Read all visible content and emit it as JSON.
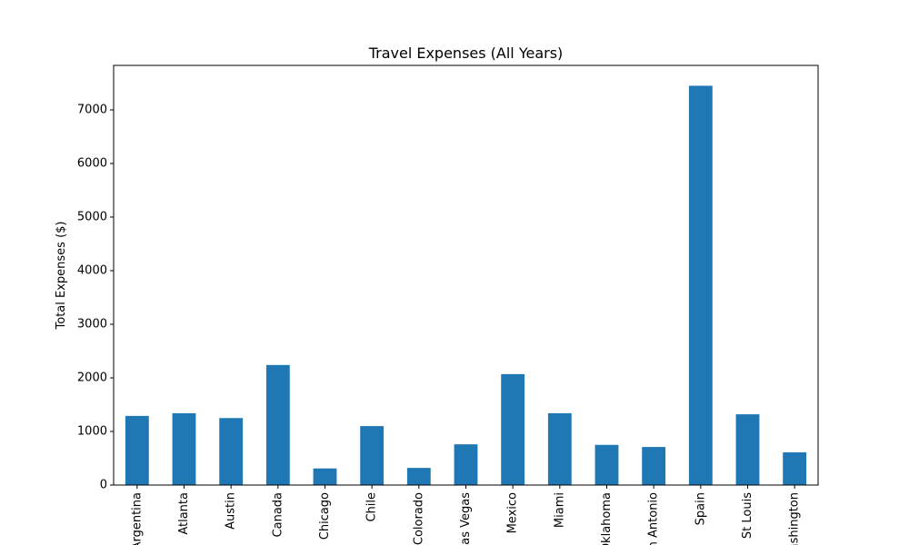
{
  "chart_data": {
    "type": "bar",
    "title": "Travel Expenses (All Years)",
    "xlabel": "",
    "ylabel": "Total Expenses ($)",
    "categories": [
      "Argentina",
      "Atlanta",
      "Austin",
      "Canada",
      "Chicago",
      "Chile",
      "Colorado",
      "Las Vegas",
      "Mexico",
      "Miami",
      "Oklahoma",
      "San Antonio",
      "Spain",
      "St Louis",
      "Washington"
    ],
    "values": [
      1290,
      1340,
      1250,
      2240,
      310,
      1100,
      320,
      760,
      2070,
      1340,
      750,
      710,
      7450,
      1320,
      610
    ],
    "ylim": [
      0,
      7830
    ],
    "yticks": [
      0,
      1000,
      2000,
      3000,
      4000,
      5000,
      6000,
      7000
    ],
    "bar_color": "#1f77b4",
    "grid": false,
    "legend": "none"
  }
}
